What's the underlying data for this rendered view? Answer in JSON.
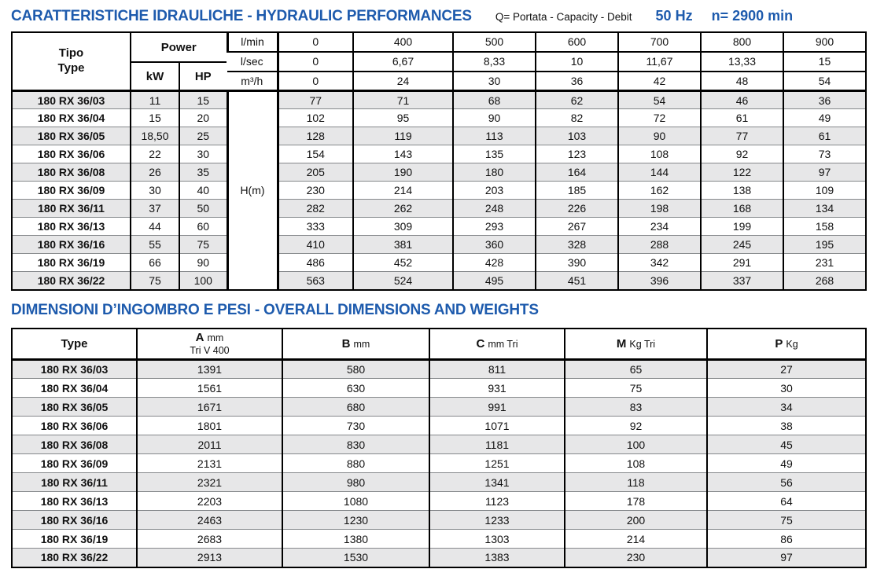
{
  "colors": {
    "accent_blue": "#1e5bad",
    "row_stripe": "#e7e7e8"
  },
  "header": {
    "title": "CARATTERISTICHE IDRAULICHE - HYDRAULIC PERFORMANCES",
    "q_note": "Q= Portata - Capacity - Debit",
    "frequency": "50 Hz",
    "speed": "n= 2900 min"
  },
  "hydraulic_table": {
    "tipo_label": "Tipo",
    "type_label": "Type",
    "power_label": "Power",
    "kw_label": "kW",
    "hp_label": "HP",
    "head_label": "H(m)",
    "flow_rows": [
      {
        "unit": "l/min",
        "values": [
          "0",
          "400",
          "500",
          "600",
          "700",
          "800",
          "900"
        ]
      },
      {
        "unit": "l/sec",
        "values": [
          "0",
          "6,67",
          "8,33",
          "10",
          "11,67",
          "13,33",
          "15"
        ]
      },
      {
        "unit": "m³/h",
        "values": [
          "0",
          "24",
          "30",
          "36",
          "42",
          "48",
          "54"
        ]
      }
    ],
    "rows": [
      {
        "model": "180 RX 36/03",
        "kw": "11",
        "hp": "15",
        "head": [
          "77",
          "71",
          "68",
          "62",
          "54",
          "46",
          "36"
        ]
      },
      {
        "model": "180 RX 36/04",
        "kw": "15",
        "hp": "20",
        "head": [
          "102",
          "95",
          "90",
          "82",
          "72",
          "61",
          "49"
        ]
      },
      {
        "model": "180 RX 36/05",
        "kw": "18,50",
        "hp": "25",
        "head": [
          "128",
          "119",
          "113",
          "103",
          "90",
          "77",
          "61"
        ]
      },
      {
        "model": "180 RX 36/06",
        "kw": "22",
        "hp": "30",
        "head": [
          "154",
          "143",
          "135",
          "123",
          "108",
          "92",
          "73"
        ]
      },
      {
        "model": "180 RX 36/08",
        "kw": "26",
        "hp": "35",
        "head": [
          "205",
          "190",
          "180",
          "164",
          "144",
          "122",
          "97"
        ]
      },
      {
        "model": "180 RX 36/09",
        "kw": "30",
        "hp": "40",
        "head": [
          "230",
          "214",
          "203",
          "185",
          "162",
          "138",
          "109"
        ]
      },
      {
        "model": "180 RX 36/11",
        "kw": "37",
        "hp": "50",
        "head": [
          "282",
          "262",
          "248",
          "226",
          "198",
          "168",
          "134"
        ]
      },
      {
        "model": "180 RX 36/13",
        "kw": "44",
        "hp": "60",
        "head": [
          "333",
          "309",
          "293",
          "267",
          "234",
          "199",
          "158"
        ]
      },
      {
        "model": "180 RX 36/16",
        "kw": "55",
        "hp": "75",
        "head": [
          "410",
          "381",
          "360",
          "328",
          "288",
          "245",
          "195"
        ]
      },
      {
        "model": "180 RX 36/19",
        "kw": "66",
        "hp": "90",
        "head": [
          "486",
          "452",
          "428",
          "390",
          "342",
          "291",
          "231"
        ]
      },
      {
        "model": "180 RX 36/22",
        "kw": "75",
        "hp": "100",
        "head": [
          "563",
          "524",
          "495",
          "451",
          "396",
          "337",
          "268"
        ]
      }
    ]
  },
  "dimensions_table": {
    "title": "DIMENSIONI D’INGOMBRO E PESI - OVERALL DIMENSIONS AND WEIGHTS",
    "type_label": "Type",
    "columns": [
      {
        "bold": "A",
        "unit": "mm",
        "sub": "Tri V 400"
      },
      {
        "bold": "B",
        "unit": "mm",
        "sub": ""
      },
      {
        "bold": "C",
        "unit": "mm Tri",
        "sub": ""
      },
      {
        "bold": "M",
        "unit": "Kg Tri",
        "sub": ""
      },
      {
        "bold": "P",
        "unit": "Kg",
        "sub": ""
      }
    ],
    "rows": [
      {
        "model": "180 RX 36/03",
        "values": [
          "1391",
          "580",
          "811",
          "65",
          "27"
        ]
      },
      {
        "model": "180 RX 36/04",
        "values": [
          "1561",
          "630",
          "931",
          "75",
          "30"
        ]
      },
      {
        "model": "180 RX 36/05",
        "values": [
          "1671",
          "680",
          "991",
          "83",
          "34"
        ]
      },
      {
        "model": "180 RX 36/06",
        "values": [
          "1801",
          "730",
          "1071",
          "92",
          "38"
        ]
      },
      {
        "model": "180 RX 36/08",
        "values": [
          "2011",
          "830",
          "1181",
          "100",
          "45"
        ]
      },
      {
        "model": "180 RX 36/09",
        "values": [
          "2131",
          "880",
          "1251",
          "108",
          "49"
        ]
      },
      {
        "model": "180 RX 36/11",
        "values": [
          "2321",
          "980",
          "1341",
          "118",
          "56"
        ]
      },
      {
        "model": "180 RX 36/13",
        "values": [
          "2203",
          "1080",
          "1123",
          "178",
          "64"
        ]
      },
      {
        "model": "180 RX 36/16",
        "values": [
          "2463",
          "1230",
          "1233",
          "200",
          "75"
        ]
      },
      {
        "model": "180 RX 36/19",
        "values": [
          "2683",
          "1380",
          "1303",
          "214",
          "86"
        ]
      },
      {
        "model": "180 RX 36/22",
        "values": [
          "2913",
          "1530",
          "1383",
          "230",
          "97"
        ]
      }
    ]
  }
}
